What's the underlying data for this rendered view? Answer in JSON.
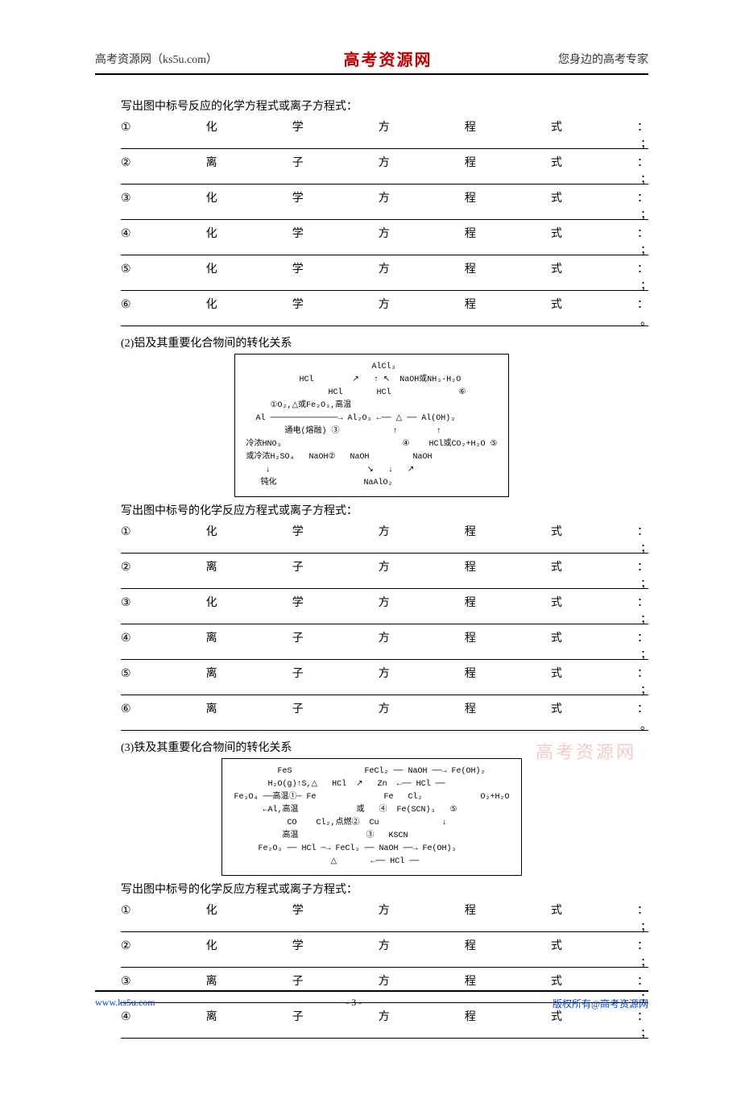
{
  "header": {
    "left": "高考资源网（ks5u.com）",
    "center": "高考资源网",
    "right": "您身边的高考专家"
  },
  "watermark": "高考资源网",
  "footer": {
    "left": "www.ks5u.com",
    "center": "- 3 -",
    "right": "版权所有@高考资源网"
  },
  "section1": {
    "intro": "写出图中标号反应的化学方程式或离子方程式：",
    "rows": [
      {
        "num": "①",
        "c1": "化",
        "c2": "学",
        "c3": "方",
        "c4": "程",
        "c5": "式",
        "colon": "：",
        "trail": "；"
      },
      {
        "num": "②",
        "c1": "离",
        "c2": "子",
        "c3": "方",
        "c4": "程",
        "c5": "式",
        "colon": "：",
        "trail": "；"
      },
      {
        "num": "③",
        "c1": "化",
        "c2": "学",
        "c3": "方",
        "c4": "程",
        "c5": "式",
        "colon": "：",
        "trail": "；"
      },
      {
        "num": "④",
        "c1": "化",
        "c2": "学",
        "c3": "方",
        "c4": "程",
        "c5": "式",
        "colon": "：",
        "trail": "；"
      },
      {
        "num": "⑤",
        "c1": "化",
        "c2": "学",
        "c3": "方",
        "c4": "程",
        "c5": "式",
        "colon": "：",
        "trail": "；"
      },
      {
        "num": "⑥",
        "c1": "化",
        "c2": "学",
        "c3": "方",
        "c4": "程",
        "c5": "式",
        "colon": "：",
        "trail": "。"
      }
    ]
  },
  "section2": {
    "title": "(2)铝及其重要化合物间的转化关系",
    "diagram": {
      "lines": [
        "                          AlCl₃",
        "           HCl        ↗   ↑ ↖  NaOH或NH₃·H₂O",
        "                 HCl       HCl              ⑥",
        "     ①O₂,△或Fe₂O₃,高温               ",
        "  Al ──────────────→ Al₂O₃ ←── △ ── Al(OH)₃",
        "        通电(熔融) ③           ↑        ↑",
        "冷浓HNO₃                         ④    HCl或CO₂+H₂O ⑤",
        "或冷浓H₂SO₄   NaOH②   NaOH         NaOH",
        "    ↓                    ↘   ↓   ↗",
        "   钝化                  NaAlO₂"
      ]
    },
    "intro": "写出图中标号的化学反应方程式或离子方程式：",
    "rows": [
      {
        "num": "①",
        "c1": "化",
        "c2": "学",
        "c3": "方",
        "c4": "程",
        "c5": "式",
        "colon": "：",
        "trail": "；"
      },
      {
        "num": "②",
        "c1": "离",
        "c2": "子",
        "c3": "方",
        "c4": "程",
        "c5": "式",
        "colon": "：",
        "trail": "；"
      },
      {
        "num": "③",
        "c1": "化",
        "c2": "学",
        "c3": "方",
        "c4": "程",
        "c5": "式",
        "colon": "：",
        "trail": "；"
      },
      {
        "num": "④",
        "c1": "离",
        "c2": "子",
        "c3": "方",
        "c4": "程",
        "c5": "式",
        "colon": "：",
        "trail": "；"
      },
      {
        "num": "⑤",
        "c1": "离",
        "c2": "子",
        "c3": "方",
        "c4": "程",
        "c5": "式",
        "colon": "：",
        "trail": "；"
      },
      {
        "num": "⑥",
        "c1": "离",
        "c2": "子",
        "c3": "方",
        "c4": "程",
        "c5": "式",
        "colon": "：",
        "trail": "。"
      }
    ]
  },
  "section3": {
    "title": "(3)铁及其重要化合物间的转化关系",
    "diagram": {
      "lines": [
        "         FeS               FeCl₂ ── NaOH ──→ Fe(OH)₂",
        "       H₂O(g)↑S,△   HCl  ↗   Zn  ←── HCl ──",
        "Fe₃O₄ ──高温①─ Fe              Fe   Cl₂            O₂+H₂O",
        "      ←Al,高温            或   ④  Fe(SCN)₃   ⑤",
        "           CO    Cl₂,点燃②  Cu             ↓",
        "          高温              ③   KSCN",
        "     Fe₂O₃ ── HCl ─→ FeCl₃ ── NaOH ──→ Fe(OH)₃",
        "                    △       ←── HCl ──"
      ]
    },
    "intro": "写出图中标号的化学反应方程式或离子方程式：",
    "rows": [
      {
        "num": "①",
        "c1": "化",
        "c2": "学",
        "c3": "方",
        "c4": "程",
        "c5": "式",
        "colon": "：",
        "trail": "；"
      },
      {
        "num": "②",
        "c1": "化",
        "c2": "学",
        "c3": "方",
        "c4": "程",
        "c5": "式",
        "colon": "：",
        "trail": "；"
      },
      {
        "num": "③",
        "c1": "离",
        "c2": "子",
        "c3": "方",
        "c4": "程",
        "c5": "式",
        "colon": "：",
        "trail": "；"
      },
      {
        "num": "④",
        "c1": "离",
        "c2": "子",
        "c3": "方",
        "c4": "程",
        "c5": "式",
        "colon": "：",
        "trail": "；"
      }
    ]
  }
}
